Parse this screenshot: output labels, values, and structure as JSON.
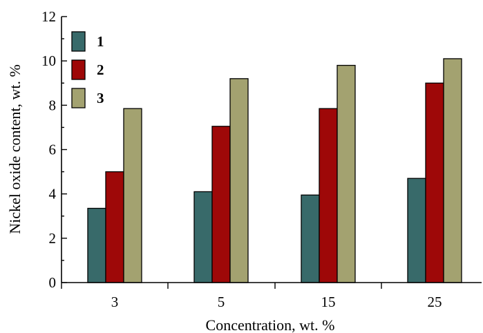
{
  "chart_data": {
    "type": "bar",
    "categories": [
      "3",
      "5",
      "15",
      "25"
    ],
    "series": [
      {
        "name": "1",
        "values": [
          3.35,
          4.1,
          3.95,
          4.7
        ],
        "color": "#386a6a"
      },
      {
        "name": "2",
        "values": [
          5.0,
          7.05,
          7.85,
          9.0
        ],
        "color": "#9e0808"
      },
      {
        "name": "3",
        "values": [
          7.85,
          9.2,
          9.8,
          10.1
        ],
        "color": "#a3a270"
      }
    ],
    "xlabel": "Concentration, wt. %",
    "ylabel": "Nickel oxide content, wt. %",
    "ylim": [
      0,
      12
    ],
    "yticks": [
      0,
      2,
      4,
      6,
      8,
      10,
      12
    ],
    "grid": false,
    "legend_position": "top-left"
  }
}
